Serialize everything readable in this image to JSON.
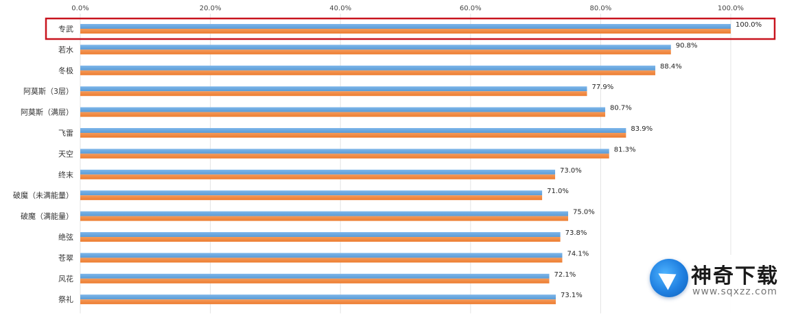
{
  "chart_data": {
    "type": "bar",
    "orientation": "horizontal",
    "categories": [
      "专武",
      "若水",
      "冬极",
      "阿莫斯（3层）",
      "阿莫斯（满层）",
      "飞雷",
      "天空",
      "终末",
      "破魔（未满能量）",
      "破魔（满能量）",
      "绝弦",
      "苍翠",
      "风花",
      "祭礼"
    ],
    "value_labels": [
      "100.0%",
      "90.8%",
      "88.4%",
      "77.9%",
      "80.7%",
      "83.9%",
      "81.3%",
      "73.0%",
      "71.0%",
      "75.0%",
      "73.8%",
      "74.1%",
      "72.1%",
      "73.1%"
    ],
    "series": [
      {
        "values": [
          100.0,
          90.8,
          88.4,
          77.9,
          80.7,
          83.9,
          81.3,
          73.0,
          71.0,
          75.0,
          73.8,
          74.1,
          72.1,
          73.1
        ]
      },
      {
        "values": [
          100.0,
          90.8,
          88.4,
          77.9,
          80.7,
          83.9,
          81.3,
          73.0,
          71.0,
          75.0,
          73.8,
          74.1,
          72.1,
          73.1
        ]
      }
    ],
    "xlim": [
      0,
      100
    ],
    "x_ticks": [
      "0.0%",
      "20.0%",
      "40.0%",
      "60.0%",
      "80.0%",
      "100.0%"
    ],
    "x_tick_values": [
      0,
      20,
      40,
      60,
      80,
      100
    ],
    "x_axis_position": "top",
    "grid": true,
    "highlighted_category": "专武",
    "colors": {
      "series_1": "#5b9bd5",
      "series_2": "#ed7d31",
      "highlight": "#c8141e",
      "grid": "#e3e3e3"
    }
  },
  "watermark": {
    "name": "神奇下载",
    "url": "www.sqxzz.com"
  }
}
